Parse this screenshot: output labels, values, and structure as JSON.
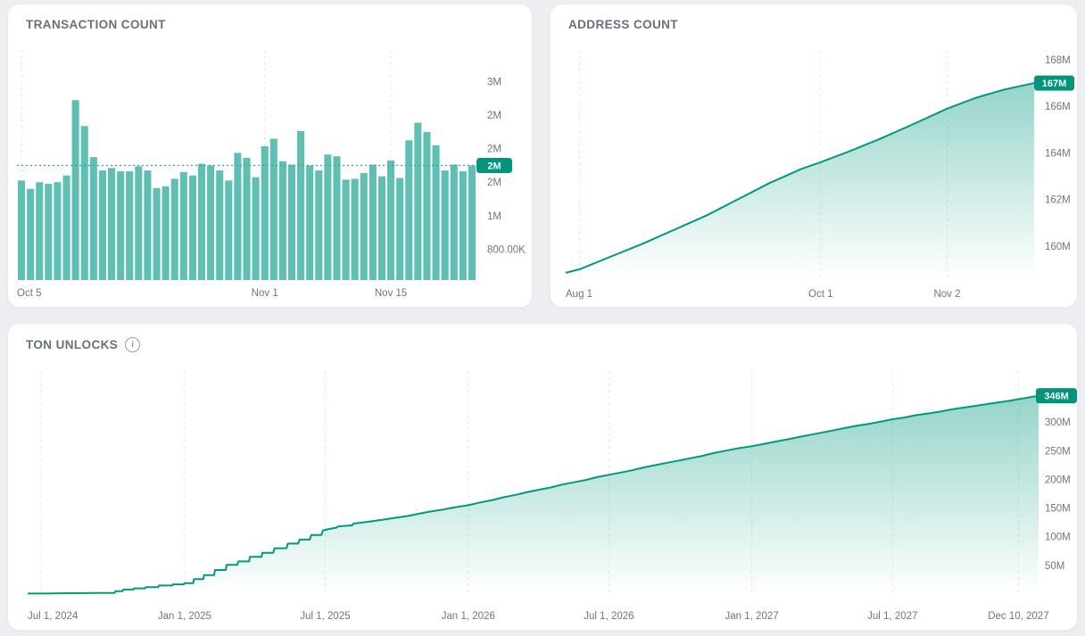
{
  "cards": [
    {
      "title": "TRANSACTION COUNT"
    },
    {
      "title": "ADDRESS COUNT"
    },
    {
      "title": "TON UNLOCKS",
      "info_icon": "i"
    }
  ],
  "colors": {
    "page_bg": "#eceef2",
    "card_bg": "#ffffff",
    "title": "#68707c",
    "axis_label": "#6d757e",
    "grid": "#e3e5e9",
    "bar": "#5fbfb2",
    "accent": "#00997d",
    "dotted": "#33a596",
    "badge_bg": "#00947c",
    "badge_text": "#ffffff"
  },
  "chart_data": [
    {
      "type": "bar",
      "title": "TRANSACTION COUNT",
      "unit": "millions of transactions per day",
      "x_frequency": "daily",
      "x_ticks": [
        {
          "label": "Oct 5",
          "index": 0
        },
        {
          "label": "Nov 1",
          "index": 27
        },
        {
          "label": "Nov 15",
          "index": 41
        }
      ],
      "values_m": [
        1.62,
        1.52,
        1.6,
        1.58,
        1.6,
        1.68,
        2.58,
        2.27,
        1.9,
        1.74,
        1.77,
        1.73,
        1.73,
        1.79,
        1.74,
        1.53,
        1.55,
        1.64,
        1.72,
        1.68,
        1.82,
        1.8,
        1.74,
        1.62,
        1.95,
        1.89,
        1.66,
        2.03,
        2.12,
        1.85,
        1.81,
        2.21,
        1.8,
        1.74,
        1.93,
        1.91,
        1.63,
        1.64,
        1.71,
        1.81,
        1.67,
        1.86,
        1.65,
        2.1,
        2.31,
        2.2,
        2.04,
        1.74,
        1.81,
        1.73,
        1.8
      ],
      "y_ticks": [
        {
          "label": "3M",
          "value": 2.8
        },
        {
          "label": "2M",
          "value": 2.4
        },
        {
          "label": "2M",
          "value": 2.0
        },
        {
          "label": "2M",
          "value": 1.6
        },
        {
          "label": "1M",
          "value": 1.2
        },
        {
          "label": "800.00K",
          "value": 0.8
        }
      ],
      "current": {
        "label": "2M",
        "value": 1.8
      },
      "grid": "vertical-dashed",
      "legend": "none"
    },
    {
      "type": "area",
      "title": "ADDRESS COUNT",
      "unit": "millions of addresses",
      "points": [
        [
          -3.5,
          158.85
        ],
        [
          0,
          159.0
        ],
        [
          8,
          159.55
        ],
        [
          16,
          160.1
        ],
        [
          24,
          160.7
        ],
        [
          32,
          161.3
        ],
        [
          40,
          162.0
        ],
        [
          48,
          162.7
        ],
        [
          56,
          163.3
        ],
        [
          61,
          163.6
        ],
        [
          68,
          164.05
        ],
        [
          76,
          164.6
        ],
        [
          84,
          165.2
        ],
        [
          93,
          165.9
        ],
        [
          100,
          166.35
        ],
        [
          107,
          166.7
        ],
        [
          115,
          167.0
        ]
      ],
      "x_unit": "days since Aug 1",
      "x_ticks": [
        {
          "label": "Aug 1",
          "d": 0
        },
        {
          "label": "Oct 1",
          "d": 61
        },
        {
          "label": "Nov 2",
          "d": 93
        }
      ],
      "y_ticks": [
        {
          "label": "168M",
          "value": 168
        },
        {
          "label": "166M",
          "value": 166
        },
        {
          "label": "164M",
          "value": 164
        },
        {
          "label": "162M",
          "value": 162
        },
        {
          "label": "160M",
          "value": 160
        }
      ],
      "current": {
        "label": "167M",
        "value": 167
      },
      "ylim": [
        158.65,
        168.42
      ],
      "grid": "vertical-dashed",
      "legend": "none"
    },
    {
      "type": "area",
      "title": "TON UNLOCKS",
      "unit": "millions of TON unlocked (cumulative)",
      "points": [
        [
          -18,
          1
        ],
        [
          0,
          1
        ],
        [
          40,
          1.5
        ],
        [
          70,
          2
        ],
        [
          94,
          2
        ],
        [
          95,
          5
        ],
        [
          104,
          5
        ],
        [
          105,
          8
        ],
        [
          118,
          8
        ],
        [
          119,
          10
        ],
        [
          133,
          10
        ],
        [
          134,
          12
        ],
        [
          150,
          12
        ],
        [
          151,
          15
        ],
        [
          168,
          15
        ],
        [
          169,
          17
        ],
        [
          183,
          17
        ],
        [
          184,
          19
        ],
        [
          195,
          19
        ],
        [
          196,
          26
        ],
        [
          208,
          26
        ],
        [
          209,
          33
        ],
        [
          222,
          33
        ],
        [
          223,
          42
        ],
        [
          237,
          42
        ],
        [
          238,
          51
        ],
        [
          252,
          51
        ],
        [
          253,
          57
        ],
        [
          267,
          57
        ],
        [
          268,
          65
        ],
        [
          283,
          65
        ],
        [
          284,
          72
        ],
        [
          298,
          72
        ],
        [
          300,
          80
        ],
        [
          315,
          80
        ],
        [
          317,
          88
        ],
        [
          330,
          88
        ],
        [
          332,
          95
        ],
        [
          345,
          95
        ],
        [
          347,
          103
        ],
        [
          360,
          103
        ],
        [
          362,
          111
        ],
        [
          368,
          113
        ],
        [
          380,
          116
        ],
        [
          381,
          118
        ],
        [
          400,
          120
        ],
        [
          401,
          123
        ],
        [
          425,
          127
        ],
        [
          440,
          130
        ],
        [
          455,
          133
        ],
        [
          470,
          136
        ],
        [
          485,
          140
        ],
        [
          500,
          144
        ],
        [
          515,
          147
        ],
        [
          530,
          151
        ],
        [
          549,
          155
        ],
        [
          565,
          160
        ],
        [
          580,
          164
        ],
        [
          595,
          169
        ],
        [
          610,
          173
        ],
        [
          625,
          178
        ],
        [
          640,
          182
        ],
        [
          655,
          186
        ],
        [
          670,
          191
        ],
        [
          685,
          195
        ],
        [
          700,
          199
        ],
        [
          715,
          204
        ],
        [
          730,
          208
        ],
        [
          745,
          212
        ],
        [
          760,
          216
        ],
        [
          775,
          221
        ],
        [
          790,
          225
        ],
        [
          805,
          229
        ],
        [
          820,
          233
        ],
        [
          835,
          237
        ],
        [
          850,
          241
        ],
        [
          865,
          246
        ],
        [
          880,
          250
        ],
        [
          895,
          254
        ],
        [
          914,
          258
        ],
        [
          930,
          262
        ],
        [
          945,
          266
        ],
        [
          960,
          270
        ],
        [
          975,
          274
        ],
        [
          990,
          278
        ],
        [
          1005,
          282
        ],
        [
          1020,
          286
        ],
        [
          1035,
          290
        ],
        [
          1050,
          294
        ],
        [
          1065,
          297
        ],
        [
          1080,
          301
        ],
        [
          1095,
          305
        ],
        [
          1110,
          308
        ],
        [
          1125,
          312
        ],
        [
          1140,
          315
        ],
        [
          1155,
          318
        ],
        [
          1170,
          322
        ],
        [
          1185,
          325
        ],
        [
          1200,
          328
        ],
        [
          1215,
          331
        ],
        [
          1230,
          334
        ],
        [
          1245,
          337
        ],
        [
          1257,
          340
        ],
        [
          1270,
          343
        ],
        [
          1283,
          346
        ]
      ],
      "x_unit": "days since Jul 1, 2024",
      "x_ticks": [
        {
          "label": "Jul 1, 2024",
          "d": 0
        },
        {
          "label": "Jan 1, 2025",
          "d": 184
        },
        {
          "label": "Jul 1, 2025",
          "d": 365
        },
        {
          "label": "Jan 1, 2026",
          "d": 549
        },
        {
          "label": "Jul 1, 2026",
          "d": 730
        },
        {
          "label": "Jan 1, 2027",
          "d": 914
        },
        {
          "label": "Jul 1, 2027",
          "d": 1095
        },
        {
          "label": "Dec 10, 2027",
          "d": 1257
        }
      ],
      "y_ticks": [
        {
          "label": "300M",
          "value": 300
        },
        {
          "label": "250M",
          "value": 250
        },
        {
          "label": "200M",
          "value": 200
        },
        {
          "label": "150M",
          "value": 150
        },
        {
          "label": "100M",
          "value": 100
        },
        {
          "label": "50M",
          "value": 50
        }
      ],
      "current": {
        "label": "346M",
        "value": 346
      },
      "ylim": [
        0,
        389
      ],
      "grid": "vertical-dashed",
      "legend": "none"
    }
  ]
}
